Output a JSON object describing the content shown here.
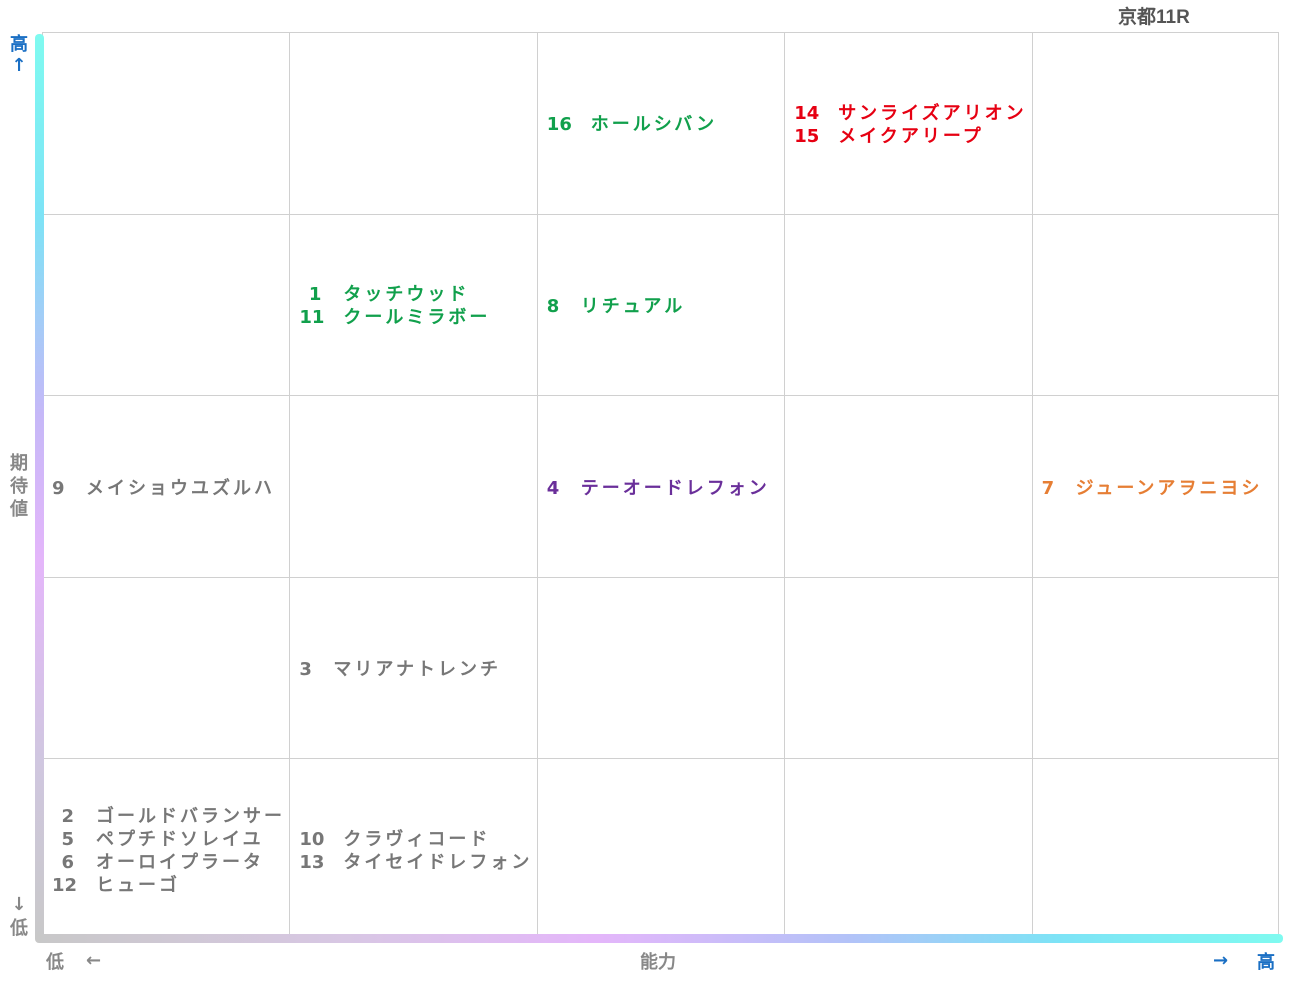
{
  "title": "京都11R",
  "colors": {
    "green": "#11a04c",
    "red": "#e60012",
    "purple": "#6a2f9a",
    "orange": "#e67e34",
    "gray": "#777777",
    "axis_blue": "#1a6fc4",
    "axis_gray": "#888888"
  },
  "axes": {
    "y_label": "期待値",
    "y_high": "高",
    "y_high_arrow": "↑",
    "y_low_arrow": "↓",
    "y_low": "低",
    "x_label": "能力",
    "x_low": "低",
    "x_low_arrow": "←",
    "x_high_arrow": "→",
    "x_high": "高"
  },
  "chart_data": {
    "type": "table",
    "columns": 5,
    "rows": 5,
    "x_axis": {
      "label": "能力",
      "low": "低",
      "high": "高"
    },
    "y_axis": {
      "label": "期待値",
      "low": "低",
      "high": "高"
    },
    "cells": [
      {
        "col": 3,
        "row": 1,
        "color": "green",
        "entries": [
          {
            "num": "16",
            "name": "ホールシバン"
          }
        ]
      },
      {
        "col": 4,
        "row": 1,
        "color": "red",
        "entries": [
          {
            "num": "14",
            "name": "サンライズアリオン"
          },
          {
            "num": "15",
            "name": "メイクアリープ"
          }
        ]
      },
      {
        "col": 2,
        "row": 2,
        "color": "green",
        "entries": [
          {
            "num": "1",
            "name": "タッチウッド"
          },
          {
            "num": "11",
            "name": "クールミラボー"
          }
        ]
      },
      {
        "col": 3,
        "row": 2,
        "color": "green",
        "entries": [
          {
            "num": "8",
            "name": "リチュアル"
          }
        ]
      },
      {
        "col": 1,
        "row": 3,
        "color": "gray",
        "entries": [
          {
            "num": "9",
            "name": "メイショウユズルハ"
          }
        ]
      },
      {
        "col": 3,
        "row": 3,
        "color": "purple",
        "entries": [
          {
            "num": "4",
            "name": "テーオードレフォン"
          }
        ]
      },
      {
        "col": 5,
        "row": 3,
        "color": "orange",
        "entries": [
          {
            "num": "7",
            "name": "ジューンアヲニヨシ"
          }
        ]
      },
      {
        "col": 2,
        "row": 4,
        "color": "gray",
        "entries": [
          {
            "num": "3",
            "name": "マリアナトレンチ"
          }
        ]
      },
      {
        "col": 1,
        "row": 5,
        "color": "gray",
        "entries": [
          {
            "num": "2",
            "name": "ゴールドバランサー"
          },
          {
            "num": "5",
            "name": "ペプチドソレイユ"
          },
          {
            "num": "6",
            "name": "オーロイプラータ"
          },
          {
            "num": "12",
            "name": "ヒューゴ"
          }
        ]
      },
      {
        "col": 2,
        "row": 5,
        "color": "gray",
        "entries": [
          {
            "num": "10",
            "name": "クラヴィコード"
          },
          {
            "num": "13",
            "name": "タイセイドレフォン"
          }
        ]
      }
    ]
  }
}
